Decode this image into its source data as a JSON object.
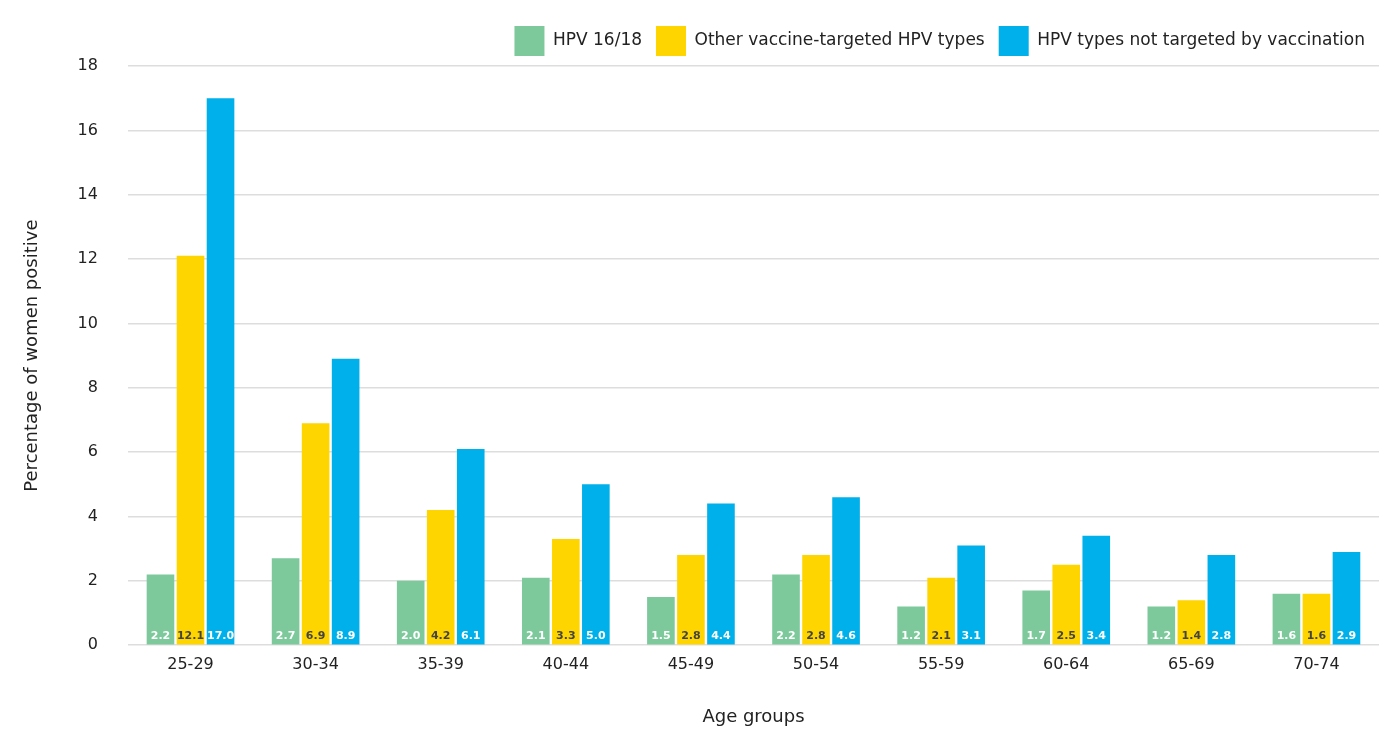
{
  "chart_data": {
    "type": "bar",
    "xlabel": "Age groups",
    "ylabel": "Percentage of women positive",
    "categories": [
      "25-29",
      "30-34",
      "35-39",
      "40-44",
      "45-49",
      "50-54",
      "55-59",
      "60-64",
      "65-69",
      "70-74"
    ],
    "series": [
      {
        "name": "HPV 16/18",
        "color": "#7dc99b",
        "values": [
          2.2,
          2.7,
          2.0,
          2.1,
          1.5,
          2.2,
          1.2,
          1.7,
          1.2,
          1.6
        ],
        "value_labels": [
          "2.2",
          "2.7",
          "2.0",
          "2.1",
          "1.5",
          "2.2",
          "1.2",
          "1.7",
          "1.2",
          "1.6"
        ]
      },
      {
        "name": "Other vaccine-targeted HPV types",
        "color": "#ffd500",
        "values": [
          12.1,
          6.9,
          4.2,
          3.3,
          2.8,
          2.8,
          2.1,
          2.5,
          1.4,
          1.6
        ],
        "value_labels": [
          "12.1",
          "6.9",
          "4.2",
          "3.3",
          "2.8",
          "2.8",
          "2.1",
          "2.5",
          "1.4",
          "1.6"
        ]
      },
      {
        "name": "HPV types not targeted by vaccination",
        "color": "#00b0ea",
        "values": [
          17.0,
          8.9,
          6.1,
          5.0,
          4.4,
          4.6,
          3.1,
          3.4,
          2.8,
          2.9
        ],
        "value_labels": [
          "17.0",
          "8.9",
          "6.1",
          "5.0",
          "4.4",
          "4.6",
          "3.1",
          "3.4",
          "2.8",
          "2.9"
        ]
      }
    ],
    "ylim": [
      0,
      18
    ],
    "yticks": [
      0,
      2,
      4,
      6,
      8,
      10,
      12,
      14,
      16,
      18
    ],
    "grid": "y",
    "legend": "top right"
  }
}
